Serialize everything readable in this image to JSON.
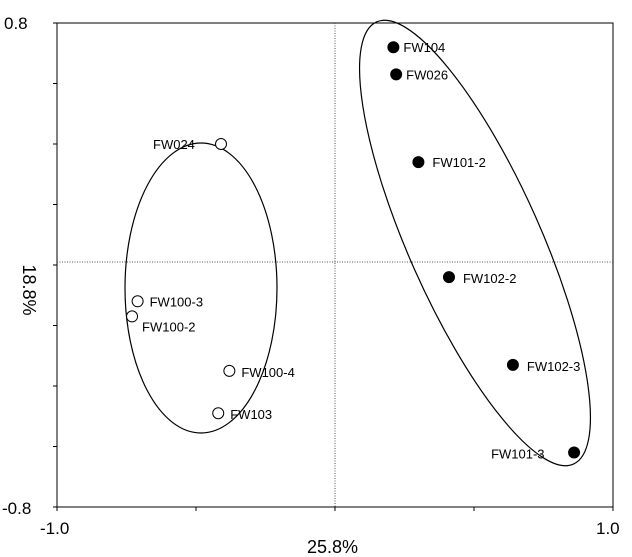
{
  "chart_data": {
    "type": "scatter",
    "title": "",
    "xlabel": "25.8%",
    "ylabel": "18.8%",
    "xlim": [
      -1.0,
      1.0
    ],
    "ylim": [
      -0.8,
      0.8
    ],
    "x_tick_labels": [
      "-1.0",
      "1.0"
    ],
    "y_tick_labels": [
      "0.8",
      "-0.8"
    ],
    "grid": false,
    "reference_lines": {
      "x": 0,
      "y": 0
    },
    "groups": [
      {
        "marker": "open-circle",
        "points": [
          {
            "label": "FW024",
            "x": -0.41,
            "y": 0.4
          },
          {
            "label": "FW100-3",
            "x": -0.71,
            "y": -0.12
          },
          {
            "label": "FW100-2",
            "x": -0.73,
            "y": -0.17
          },
          {
            "label": "FW100-4",
            "x": -0.38,
            "y": -0.35
          },
          {
            "label": "FW103",
            "x": -0.42,
            "y": -0.49
          }
        ],
        "ellipse": {
          "cx": -0.49,
          "cy": -0.14,
          "rx": 0.28,
          "ry": 0.56
        }
      },
      {
        "marker": "filled-circle",
        "points": [
          {
            "label": "FW104",
            "x": 0.21,
            "y": 0.72
          },
          {
            "label": "FW026",
            "x": 0.22,
            "y": 0.63
          },
          {
            "label": "FW101-2",
            "x": 0.3,
            "y": 0.34
          },
          {
            "label": "FW102-2",
            "x": 0.41,
            "y": -0.04
          },
          {
            "label": "FW102-3",
            "x": 0.64,
            "y": -0.33
          },
          {
            "label": "FW101-3",
            "x": 0.86,
            "y": -0.62
          }
        ]
      }
    ]
  }
}
